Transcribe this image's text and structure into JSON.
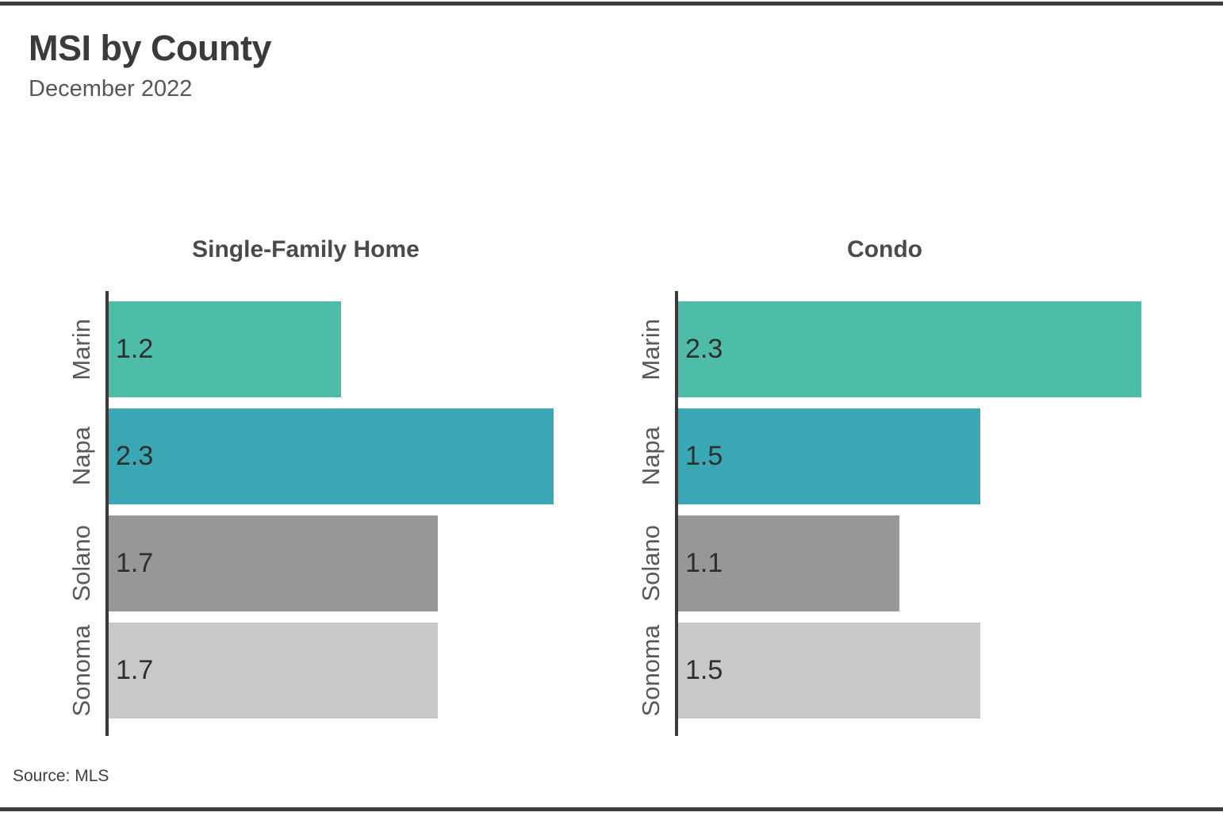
{
  "header": {
    "title": "MSI by County",
    "subtitle": "December 2022"
  },
  "source": "Source: MLS",
  "style": {
    "bar_colors": [
      "#4DBCA8",
      "#3AA8B4",
      "#979797",
      "#C8C8C8"
    ],
    "axis_color": "#3A3A3A",
    "rule_color": "#3E3E3E",
    "category_label_color": "#595959",
    "value_label_color": "#2E2E2E"
  },
  "chart_data": [
    {
      "type": "bar",
      "orientation": "horizontal",
      "title": "Single-Family Home",
      "categories": [
        "Marin",
        "Napa",
        "Solano",
        "Sonoma"
      ],
      "values": [
        1.2,
        2.3,
        1.7,
        1.7
      ],
      "xlim": [
        0,
        2.4
      ],
      "grid": false,
      "legend": "none",
      "value_labels": "inside-left"
    },
    {
      "type": "bar",
      "orientation": "horizontal",
      "title": "Condo",
      "categories": [
        "Marin",
        "Napa",
        "Solano",
        "Sonoma"
      ],
      "values": [
        2.3,
        1.5,
        1.1,
        1.5
      ],
      "xlim": [
        0,
        2.4
      ],
      "grid": false,
      "legend": "none",
      "value_labels": "inside-left"
    }
  ]
}
